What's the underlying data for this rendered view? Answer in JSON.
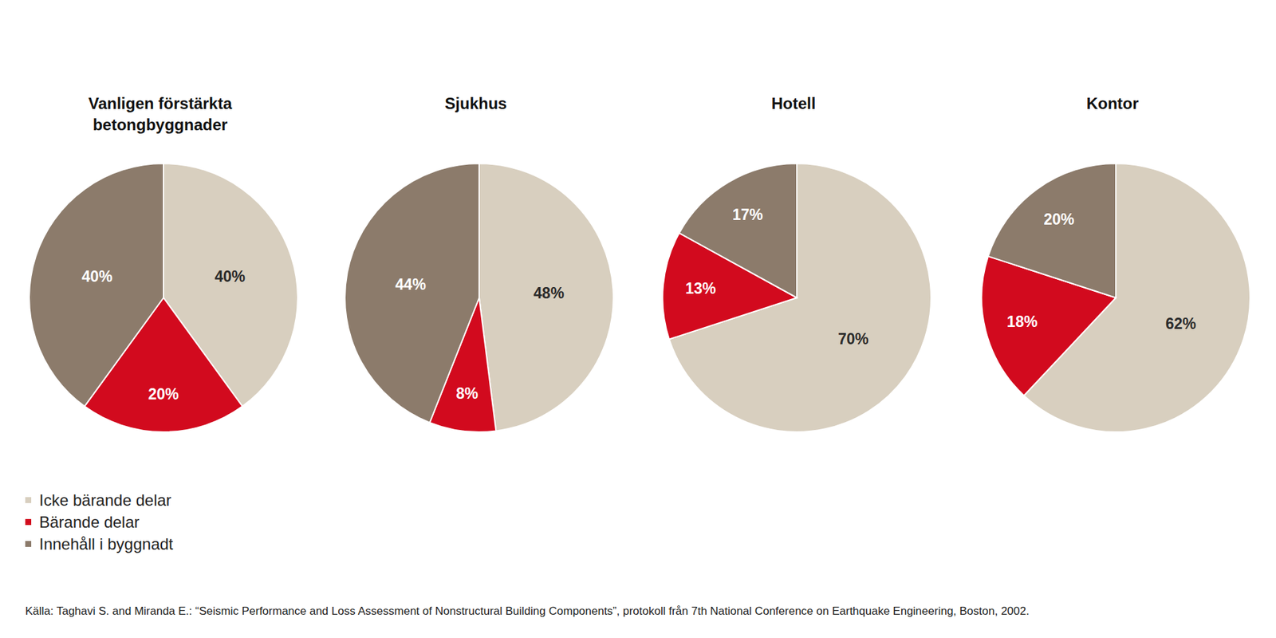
{
  "chart_data": [
    {
      "type": "pie",
      "title": "Vanligen förstärkta betongbyggnader",
      "categories": [
        "Icke bärande delar",
        "Bärande delar",
        "Innehåll i byggnadt"
      ],
      "values": [
        40,
        20,
        40
      ],
      "value_labels": [
        "40%",
        "20%",
        "40%"
      ],
      "colors": [
        "#d8cfbf",
        "#d20a1e",
        "#8c7b6b"
      ],
      "data_labels": true,
      "legend": "bottom-left"
    },
    {
      "type": "pie",
      "title": "Sjukhus",
      "categories": [
        "Icke bärande delar",
        "Bärande delar",
        "Innehåll i byggnadt"
      ],
      "values": [
        48,
        8,
        44
      ],
      "value_labels": [
        "48%",
        "8%",
        "44%"
      ],
      "colors": [
        "#d8cfbf",
        "#d20a1e",
        "#8c7b6b"
      ],
      "data_labels": true
    },
    {
      "type": "pie",
      "title": "Hotell",
      "categories": [
        "Icke bärande delar",
        "Bärande delar",
        "Innehåll i byggnadt"
      ],
      "values": [
        70,
        13,
        17
      ],
      "value_labels": [
        "70%",
        "13%",
        "17%"
      ],
      "colors": [
        "#d8cfbf",
        "#d20a1e",
        "#8c7b6b"
      ],
      "data_labels": true
    },
    {
      "type": "pie",
      "title": "Kontor",
      "categories": [
        "Icke bärande delar",
        "Bärande delar",
        "Innehåll i byggnadt"
      ],
      "values": [
        62,
        18,
        20
      ],
      "value_labels": [
        "62%",
        "18%",
        "20%"
      ],
      "colors": [
        "#d8cfbf",
        "#d20a1e",
        "#8c7b6b"
      ],
      "data_labels": true
    }
  ],
  "source": "Källa: Taghavi S. and Miranda E.: “Seismic Performance and Loss Assessment of Nonstructural Building Components”, protokoll från 7th National Conference on Earthquake Engineering, Boston, 2002."
}
